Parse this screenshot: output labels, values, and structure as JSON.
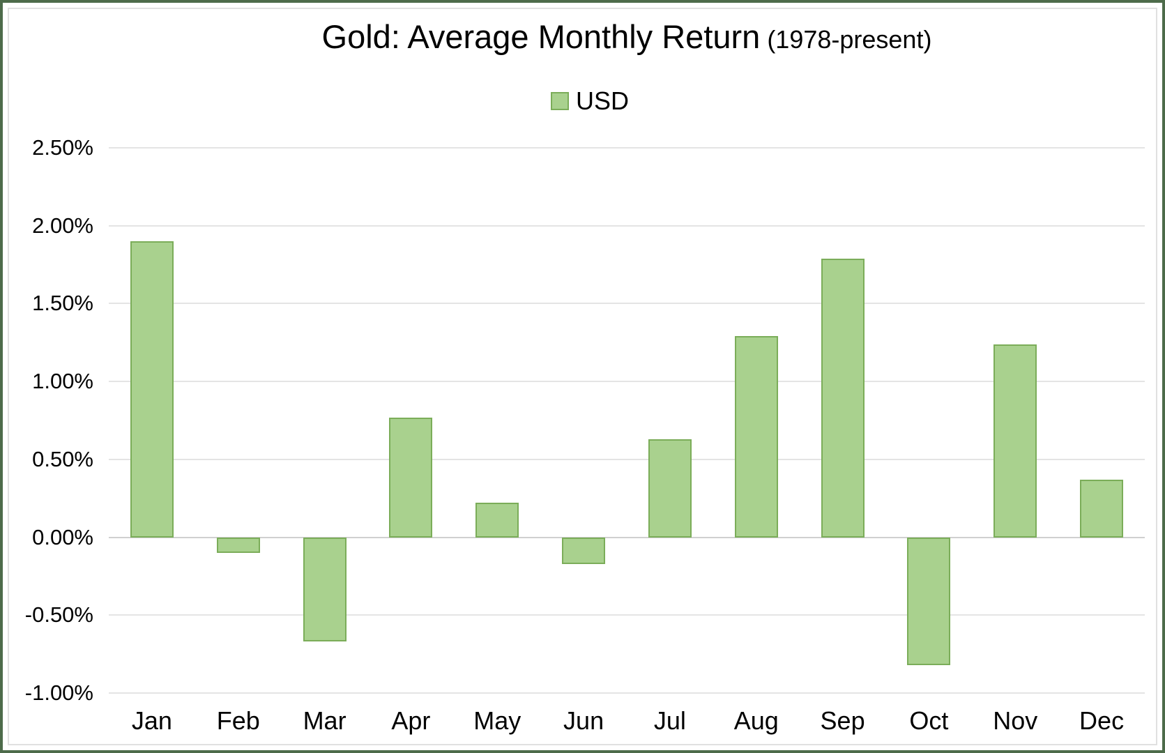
{
  "title": {
    "main": "Gold: Average Monthly Return",
    "suffix": "(1978-present)"
  },
  "legend": {
    "label": "USD"
  },
  "colors": {
    "bar_fill": "#a9d18e",
    "bar_border": "#7bad59",
    "gridline": "#e4e4e4",
    "zero_line": "#d0d0d0",
    "frame_border": "#4d6b4a",
    "text": "#000000"
  },
  "chart_data": {
    "type": "bar",
    "title": "Gold: Average Monthly Return (1978-present)",
    "categories": [
      "Jan",
      "Feb",
      "Mar",
      "Apr",
      "May",
      "Jun",
      "Jul",
      "Aug",
      "Sep",
      "Oct",
      "Nov",
      "Dec"
    ],
    "series": [
      {
        "name": "USD",
        "values": [
          1.9,
          -0.1,
          -0.67,
          0.77,
          0.22,
          -0.17,
          0.63,
          1.29,
          1.79,
          -0.82,
          1.24,
          0.37
        ]
      }
    ],
    "value_unit": "%",
    "xlabel": "",
    "ylabel": "",
    "ylim": [
      -1.0,
      2.5
    ],
    "ytick_step": 0.5,
    "yticks": [
      "2.50%",
      "2.00%",
      "1.50%",
      "1.00%",
      "0.50%",
      "0.00%",
      "-0.50%",
      "-1.00%"
    ],
    "grid": true,
    "legend_position": "top-center"
  }
}
